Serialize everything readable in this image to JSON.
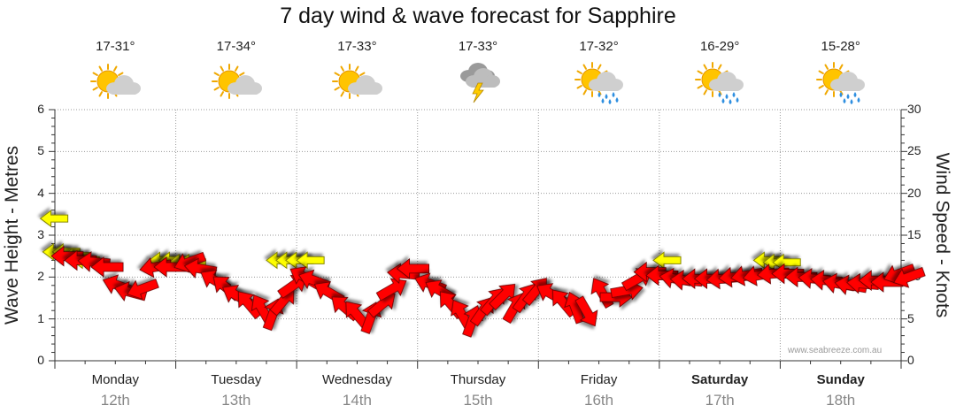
{
  "title": "7 day wind & wave forecast for Sapphire",
  "left_axis_label": "Wave Height - Metres",
  "right_axis_label": "Wind Speed - Knots",
  "credit": "www.seabreeze.com.au",
  "left_ticks": [
    "0",
    "1",
    "2",
    "3",
    "4",
    "5",
    "6"
  ],
  "right_ticks": [
    "0",
    "5",
    "10",
    "15",
    "20",
    "25",
    "30"
  ],
  "days": [
    {
      "name": "Monday",
      "date": "12th",
      "temp": "17-31°",
      "icon": "partly-cloudy-sun-icon",
      "bold": false
    },
    {
      "name": "Tuesday",
      "date": "13th",
      "temp": "17-34°",
      "icon": "partly-cloudy-sun-icon",
      "bold": false
    },
    {
      "name": "Wednesday",
      "date": "14th",
      "temp": "17-33°",
      "icon": "partly-cloudy-sun-icon",
      "bold": false
    },
    {
      "name": "Thursday",
      "date": "15th",
      "temp": "17-33°",
      "icon": "thunderstorm-icon",
      "bold": false
    },
    {
      "name": "Friday",
      "date": "16th",
      "temp": "17-32°",
      "icon": "sun-showers-icon",
      "bold": false
    },
    {
      "name": "Saturday",
      "date": "17th",
      "temp": "16-29°",
      "icon": "sun-showers-icon",
      "bold": true
    },
    {
      "name": "Sunday",
      "date": "18th",
      "temp": "15-28°",
      "icon": "sun-showers-icon",
      "bold": true
    }
  ],
  "colors": {
    "wind": "#ff0000",
    "wave": "#ffff00",
    "arrow_outline": "#660000",
    "wave_outline": "#888800",
    "grid": "#999999"
  },
  "chart_data": {
    "type": "scatter",
    "ylim_wave_m": [
      0,
      6
    ],
    "ylim_wind_knots": [
      0,
      30
    ],
    "grid": true,
    "series": [
      {
        "comment_units": "x = day index (0 = Monday 12th, 7 = end of Sunday 18th), y = knots, dir = bearing the arrow points to in degrees",
        "points": [
          {
            "x": 0.0,
            "y": 12.5,
            "dir": 270
          },
          {
            "x": 0.11,
            "y": 12.0,
            "dir": 270
          },
          {
            "x": 0.22,
            "y": 11.8,
            "dir": 275
          },
          {
            "x": 0.33,
            "y": 11.2,
            "dir": 270
          },
          {
            "x": 0.42,
            "y": 9.0,
            "dir": 290
          },
          {
            "x": 0.52,
            "y": 8.2,
            "dir": 285
          },
          {
            "x": 0.62,
            "y": 8.6,
            "dir": 250
          },
          {
            "x": 0.73,
            "y": 11.2,
            "dir": 260
          },
          {
            "x": 0.85,
            "y": 11.2,
            "dir": 270
          },
          {
            "x": 1.01,
            "y": 11.8,
            "dir": 250
          },
          {
            "x": 1.1,
            "y": 11.0,
            "dir": 280
          },
          {
            "x": 1.22,
            "y": 9.6,
            "dir": 300
          },
          {
            "x": 1.31,
            "y": 8.8,
            "dir": 310
          },
          {
            "x": 1.4,
            "y": 7.8,
            "dir": 300
          },
          {
            "x": 1.5,
            "y": 6.8,
            "dir": 320
          },
          {
            "x": 1.61,
            "y": 6.2,
            "dir": 330
          },
          {
            "x": 1.7,
            "y": 5.6,
            "dir": 20
          },
          {
            "x": 1.79,
            "y": 7.2,
            "dir": 40
          },
          {
            "x": 1.87,
            "y": 9.0,
            "dir": 55
          },
          {
            "x": 1.96,
            "y": 10.0,
            "dir": 300
          },
          {
            "x": 2.04,
            "y": 9.6,
            "dir": 290
          },
          {
            "x": 2.16,
            "y": 8.2,
            "dir": 300
          },
          {
            "x": 2.29,
            "y": 6.4,
            "dir": 310
          },
          {
            "x": 2.39,
            "y": 5.6,
            "dir": 320
          },
          {
            "x": 2.51,
            "y": 5.2,
            "dir": 20
          },
          {
            "x": 2.61,
            "y": 6.8,
            "dir": 50
          },
          {
            "x": 2.69,
            "y": 8.6,
            "dir": 60
          },
          {
            "x": 2.78,
            "y": 10.4,
            "dir": 275
          },
          {
            "x": 2.86,
            "y": 11.0,
            "dir": 270
          },
          {
            "x": 3.0,
            "y": 9.2,
            "dir": 290
          },
          {
            "x": 3.08,
            "y": 8.4,
            "dir": 300
          },
          {
            "x": 3.17,
            "y": 6.8,
            "dir": 320
          },
          {
            "x": 3.26,
            "y": 5.6,
            "dir": 330
          },
          {
            "x": 3.35,
            "y": 4.8,
            "dir": 20
          },
          {
            "x": 3.44,
            "y": 6.0,
            "dir": 35
          },
          {
            "x": 3.53,
            "y": 7.2,
            "dir": 40
          },
          {
            "x": 3.61,
            "y": 7.8,
            "dir": 45
          },
          {
            "x": 3.7,
            "y": 6.4,
            "dir": 30
          },
          {
            "x": 3.79,
            "y": 7.6,
            "dir": 35
          },
          {
            "x": 3.88,
            "y": 8.4,
            "dir": 40
          },
          {
            "x": 4.0,
            "y": 8.0,
            "dir": 300
          },
          {
            "x": 4.1,
            "y": 7.0,
            "dir": 320
          },
          {
            "x": 4.2,
            "y": 6.4,
            "dir": 340
          },
          {
            "x": 4.3,
            "y": 5.8,
            "dir": 150
          },
          {
            "x": 4.42,
            "y": 8.2,
            "dir": 330
          },
          {
            "x": 4.54,
            "y": 7.6,
            "dir": 90
          },
          {
            "x": 4.63,
            "y": 8.4,
            "dir": 80
          },
          {
            "x": 4.72,
            "y": 9.8,
            "dir": 60
          },
          {
            "x": 4.82,
            "y": 10.6,
            "dir": 270
          },
          {
            "x": 4.92,
            "y": 10.2,
            "dir": 270
          },
          {
            "x": 5.03,
            "y": 9.8,
            "dir": 280
          },
          {
            "x": 5.12,
            "y": 9.6,
            "dir": 275
          },
          {
            "x": 5.22,
            "y": 9.8,
            "dir": 270
          },
          {
            "x": 5.32,
            "y": 9.8,
            "dir": 270
          },
          {
            "x": 5.42,
            "y": 9.8,
            "dir": 265
          },
          {
            "x": 5.52,
            "y": 10.0,
            "dir": 265
          },
          {
            "x": 5.62,
            "y": 10.2,
            "dir": 260
          },
          {
            "x": 5.72,
            "y": 10.2,
            "dir": 260
          },
          {
            "x": 5.84,
            "y": 10.4,
            "dir": 265
          },
          {
            "x": 5.96,
            "y": 10.4,
            "dir": 270
          },
          {
            "x": 6.07,
            "y": 10.0,
            "dir": 270
          },
          {
            "x": 6.18,
            "y": 9.8,
            "dir": 275
          },
          {
            "x": 6.28,
            "y": 9.6,
            "dir": 275
          },
          {
            "x": 6.38,
            "y": 9.2,
            "dir": 280
          },
          {
            "x": 6.48,
            "y": 9.0,
            "dir": 280
          },
          {
            "x": 6.58,
            "y": 9.2,
            "dir": 275
          },
          {
            "x": 6.68,
            "y": 9.6,
            "dir": 270
          },
          {
            "x": 6.78,
            "y": 9.4,
            "dir": 270
          },
          {
            "x": 6.88,
            "y": 10.4,
            "dir": 250
          },
          {
            "x": 6.96,
            "y": 10.0,
            "dir": 250
          }
        ]
      },
      {
        "comment_units": "x = day index, y = metres",
        "points": [
          {
            "x": -0.12,
            "y": 3.4
          },
          {
            "x": -0.1,
            "y": 2.6
          },
          {
            "x": -0.02,
            "y": 2.6
          },
          {
            "x": 0.06,
            "y": 2.5
          },
          {
            "x": 0.14,
            "y": 2.4
          },
          {
            "x": 0.78,
            "y": 2.4
          },
          {
            "x": 0.86,
            "y": 2.4
          },
          {
            "x": 0.94,
            "y": 2.35
          },
          {
            "x": 1.02,
            "y": 2.35
          },
          {
            "x": 1.75,
            "y": 2.4
          },
          {
            "x": 1.83,
            "y": 2.4
          },
          {
            "x": 1.91,
            "y": 2.4
          },
          {
            "x": 2.0,
            "y": 2.4
          },
          {
            "x": 4.95,
            "y": 2.4
          },
          {
            "x": 5.78,
            "y": 2.4
          },
          {
            "x": 5.86,
            "y": 2.35
          },
          {
            "x": 5.94,
            "y": 2.35
          }
        ]
      }
    ]
  }
}
